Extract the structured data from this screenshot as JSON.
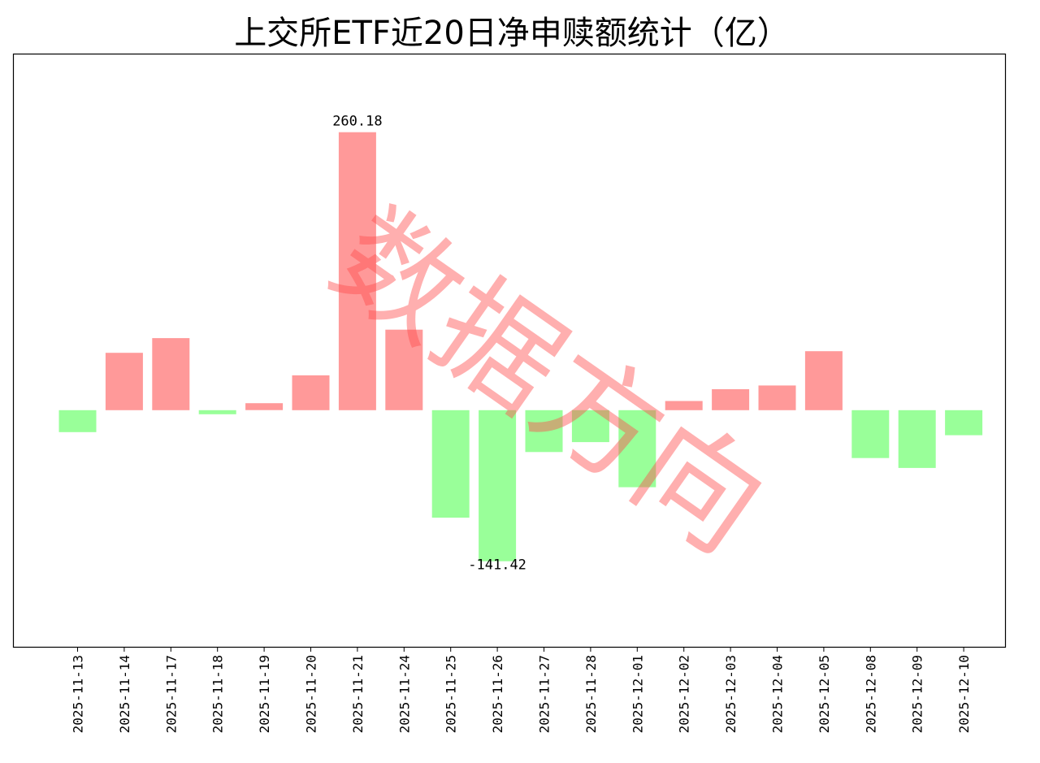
{
  "chart_data": {
    "type": "bar",
    "title": "上交所ETF近20日净申赎额统计（亿）",
    "xlabel": "",
    "ylabel": "",
    "categories": [
      "2025-11-13",
      "2025-11-14",
      "2025-11-17",
      "2025-11-18",
      "2025-11-19",
      "2025-11-20",
      "2025-11-21",
      "2025-11-24",
      "2025-11-25",
      "2025-11-26",
      "2025-11-27",
      "2025-11-28",
      "2025-12-01",
      "2025-12-02",
      "2025-12-03",
      "2025-12-04",
      "2025-12-05",
      "2025-12-08",
      "2025-12-09",
      "2025-12-10"
    ],
    "values": [
      -20.5,
      53.7,
      67.5,
      -3.8,
      6.5,
      32.6,
      260.18,
      75.4,
      -100.6,
      -141.42,
      -39.2,
      -29.9,
      -72.1,
      8.6,
      19.6,
      23.1,
      55.2,
      -44.8,
      -54.1,
      -23.4
    ],
    "annotations": [
      {
        "category": "2025-11-21",
        "text": "260.18"
      },
      {
        "category": "2025-11-26",
        "text": "-141.42"
      }
    ],
    "ylim": [
      -221.5,
      333.0
    ],
    "grid": false,
    "legend": "none",
    "colors": {
      "positive": "#ff9999",
      "negative": "#99ff99",
      "watermark": "#ff4d4d"
    }
  },
  "watermark": "数据方向"
}
